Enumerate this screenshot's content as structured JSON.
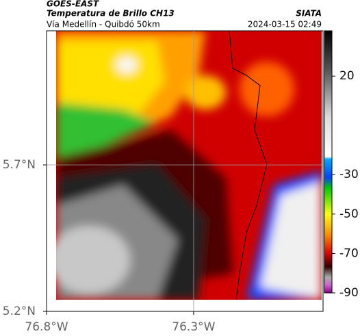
{
  "header": {
    "product": "GOES-EAST",
    "title": "Temperatura de Brillo CH13",
    "source": "SIATA",
    "subtitle": "Vía Medellín - Quibdó 50km",
    "timestamp": "2024-03-15 02:49"
  },
  "map": {
    "xlim": [
      -76.8,
      -75.86
    ],
    "ylim": [
      5.2,
      6.158
    ],
    "xticks": [
      {
        "value": -76.8,
        "label": "76.8°W"
      },
      {
        "value": -76.3,
        "label": "76.3°W"
      }
    ],
    "yticks": [
      {
        "value": 5.2,
        "label": "5.2°N"
      },
      {
        "value": 5.7,
        "label": "5.7°N"
      }
    ],
    "grid": true
  },
  "colorbar": {
    "clim": [
      43,
      -90
    ],
    "ticks": [
      20,
      -30,
      -50,
      -70,
      -90
    ]
  }
}
